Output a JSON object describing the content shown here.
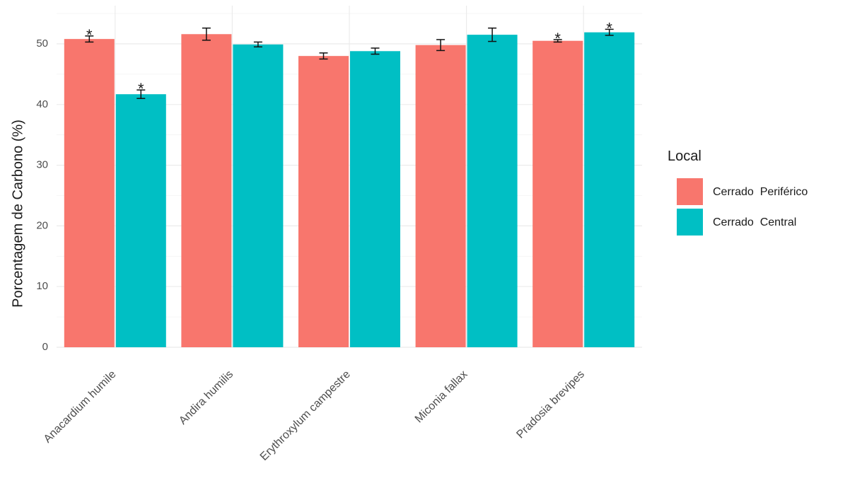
{
  "chart_data": {
    "type": "bar",
    "title": "",
    "xlabel": "",
    "ylabel": "Porcentagem de Carbono (%)",
    "ylim": [
      0,
      55
    ],
    "yticks": [
      0,
      10,
      20,
      30,
      40,
      50
    ],
    "grid": true,
    "legend_title": "Local",
    "legend_position": "right",
    "categories": [
      "Anacardium humile",
      "Andira humilis",
      "Erythroxylum campestre",
      "Miconia fallax",
      "Pradosia brevipes"
    ],
    "series": [
      {
        "name": "Cerrado  Periférico",
        "color": "#F8766D",
        "values": [
          50.8,
          51.6,
          48.0,
          49.8,
          50.5
        ],
        "error": [
          0.5,
          1.0,
          0.5,
          0.9,
          0.2
        ],
        "significance": [
          "*",
          "",
          "",
          "",
          "*"
        ]
      },
      {
        "name": "Cerrado  Central",
        "color": "#00BFC4",
        "values": [
          41.7,
          49.9,
          48.8,
          51.5,
          51.9
        ],
        "error": [
          0.7,
          0.4,
          0.5,
          1.1,
          0.5
        ],
        "significance": [
          "*",
          "",
          "",
          "",
          "*"
        ]
      }
    ]
  }
}
